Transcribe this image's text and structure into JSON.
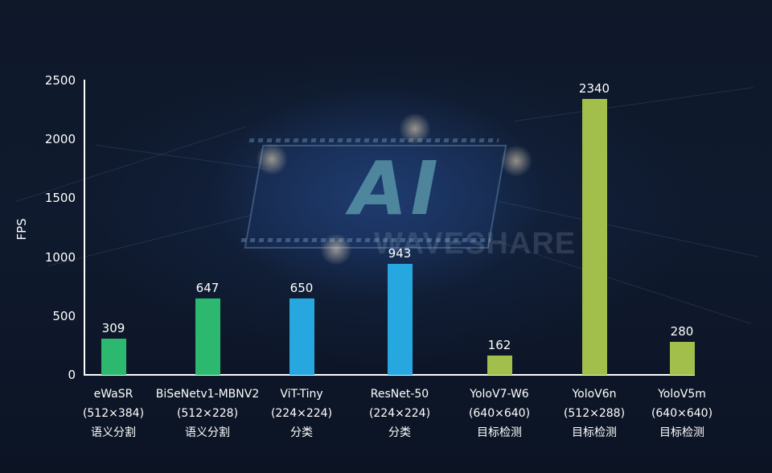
{
  "chart_data": {
    "type": "bar",
    "title": "",
    "xlabel": "",
    "ylabel": "FPS",
    "ylim": [
      0,
      2500
    ],
    "yticks": [
      0,
      500,
      1000,
      1500,
      2000,
      2500
    ],
    "grid": false,
    "legend": null,
    "categories": [
      {
        "name": "eWaSR",
        "resolution": "(512×384)",
        "task": "语义分割"
      },
      {
        "name": "BiSeNetv1-MBNV2",
        "resolution": "(512×228)",
        "task": "语义分割"
      },
      {
        "name": "ViT-Tiny",
        "resolution": "(224×224)",
        "task": "分类"
      },
      {
        "name": "ResNet-50",
        "resolution": "(224×224)",
        "task": "分类"
      },
      {
        "name": "YoloV7-W6",
        "resolution": "(640×640)",
        "task": "目标检测"
      },
      {
        "name": "YoloV6n",
        "resolution": "(512×288)",
        "task": "目标检测"
      },
      {
        "name": "YoloV5m",
        "resolution": "(640×640)",
        "task": "目标检测"
      }
    ],
    "values": [
      309,
      647,
      650,
      943,
      162,
      2340,
      280
    ],
    "value_labels": [
      "309",
      "647",
      "650",
      "943",
      "162",
      "2340",
      "280"
    ],
    "bar_colors": [
      "#2db870",
      "#2db870",
      "#27a7e0",
      "#27a7e0",
      "#a3bf4b",
      "#a3bf4b",
      "#a3bf4b"
    ],
    "color_groups": {
      "语义分割": "#2db870",
      "分类": "#27a7e0",
      "目标检测": "#a3bf4b"
    }
  },
  "axis": {
    "y_title": "FPS",
    "ticks": [
      "0",
      "500",
      "1000",
      "1500",
      "2000",
      "2500"
    ]
  },
  "background": {
    "logo_text": "AI",
    "watermark": "WAVESHARE"
  }
}
